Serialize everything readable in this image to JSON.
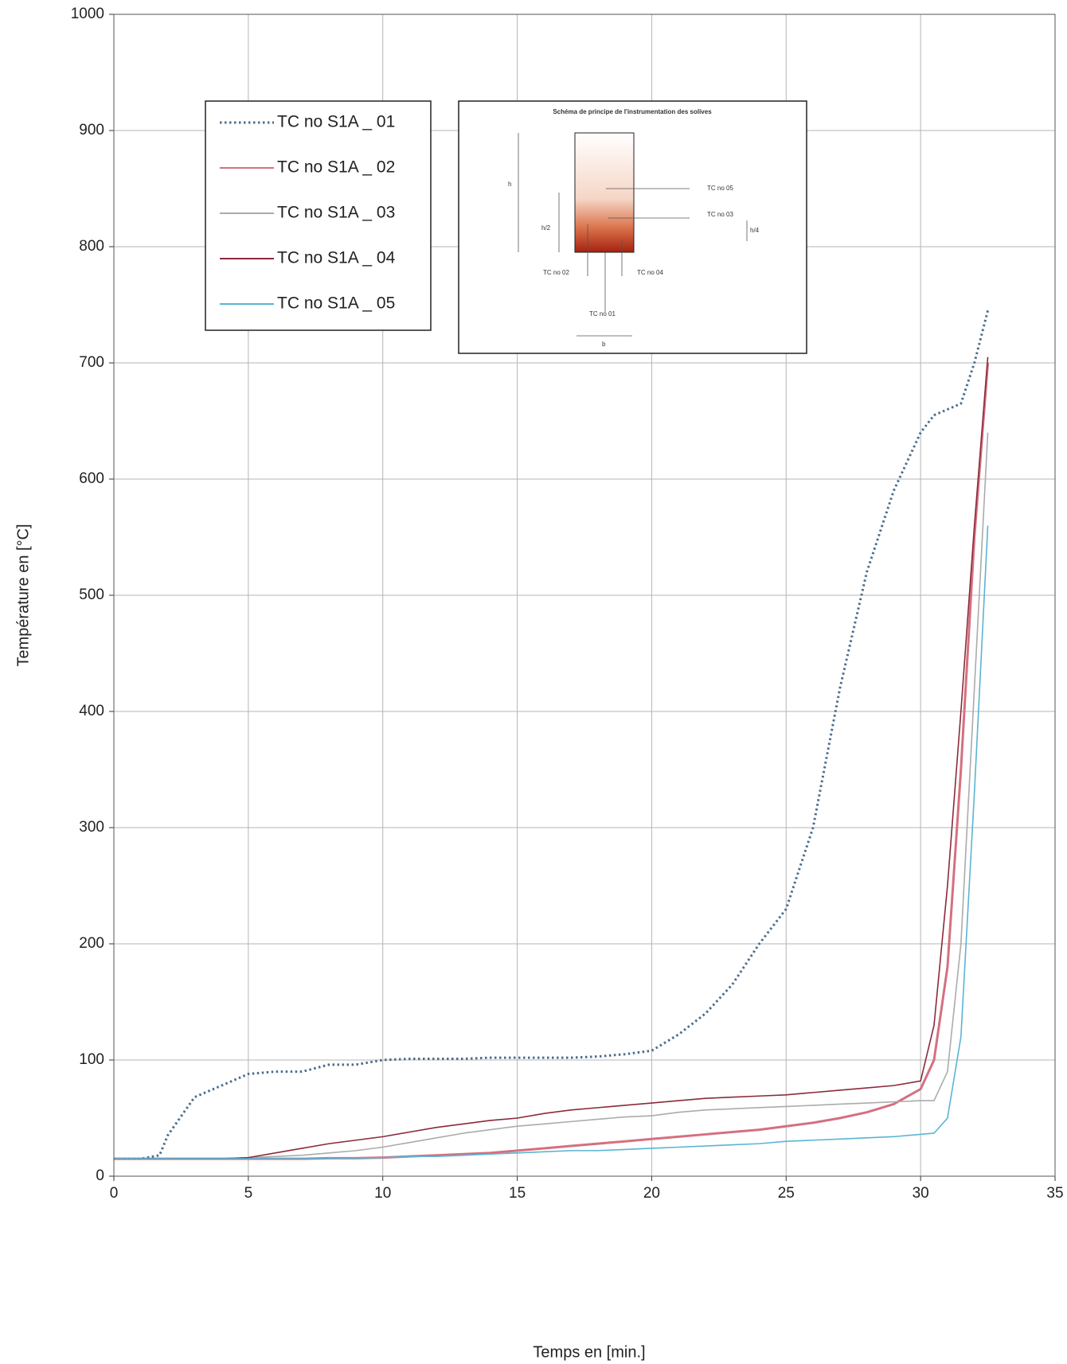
{
  "chart_data": {
    "type": "line",
    "xlabel": "Temps en [min.]",
    "ylabel": "Température  en [°C]",
    "x": [
      0,
      1,
      1.7,
      2,
      3,
      4,
      5,
      6,
      7,
      8,
      9,
      10,
      11,
      12,
      13,
      14,
      15,
      16,
      17,
      18,
      19,
      20,
      21,
      22,
      23,
      24,
      25,
      26,
      27,
      28,
      29,
      30,
      30.5,
      31,
      31.5,
      32,
      32.5
    ],
    "series": [
      {
        "name": "TC no S1A _ 01",
        "color": "#4a6d8c",
        "line_style": "dotted",
        "values": [
          15,
          15,
          18,
          35,
          68,
          78,
          88,
          90,
          90,
          96,
          96,
          100,
          101,
          101,
          101,
          102,
          102,
          102,
          102,
          103,
          105,
          108,
          122,
          140,
          165,
          200,
          230,
          300,
          420,
          520,
          590,
          640,
          655,
          660,
          665,
          700,
          745
        ]
      },
      {
        "name": "TC no S1A _ 02",
        "color": "#d4707f",
        "line_style": "solid",
        "values": [
          15,
          15,
          15,
          15,
          15,
          15,
          15,
          15,
          15,
          15.5,
          15.5,
          16,
          17,
          18,
          19,
          20,
          22,
          24,
          26,
          28,
          30,
          32,
          34,
          36,
          38,
          40,
          43,
          46,
          50,
          55,
          62,
          75,
          100,
          180,
          350,
          550,
          700
        ]
      },
      {
        "name": "TC no S1A _ 03",
        "color": "#ababab",
        "line_style": "solid",
        "values": [
          15,
          15,
          15,
          15,
          15,
          15,
          16,
          17,
          18,
          20,
          22,
          25,
          29,
          33,
          37,
          40,
          43,
          45,
          47,
          49,
          51,
          52,
          55,
          57,
          58,
          59,
          60,
          61,
          62,
          63,
          64,
          65,
          65,
          90,
          200,
          420,
          640
        ]
      },
      {
        "name": "TC no S1A _ 04",
        "color": "#8b2a3a",
        "line_style": "solid",
        "values": [
          15,
          15,
          15,
          15,
          15,
          15,
          16,
          20,
          24,
          28,
          31,
          34,
          38,
          42,
          45,
          48,
          50,
          54,
          57,
          59,
          61,
          63,
          65,
          67,
          68,
          69,
          70,
          72,
          74,
          76,
          78,
          82,
          130,
          250,
          400,
          560,
          705
        ]
      },
      {
        "name": "TC no S1A _ 05",
        "color": "#5ab4d4",
        "line_style": "solid",
        "values": [
          15,
          15,
          15,
          15,
          15,
          15,
          15,
          15,
          15,
          15.5,
          15.5,
          16,
          17,
          17,
          18,
          19,
          20,
          21,
          22,
          22,
          23,
          24,
          25,
          26,
          27,
          28,
          30,
          31,
          32,
          33,
          34,
          36,
          37,
          50,
          120,
          330,
          560
        ]
      }
    ],
    "xlim": [
      0,
      35
    ],
    "ylim": [
      0,
      1000
    ],
    "xticks": [
      0,
      5,
      10,
      15,
      20,
      25,
      30,
      35
    ],
    "yticks": [
      0,
      100,
      200,
      300,
      400,
      500,
      600,
      700,
      800,
      900,
      1000
    ],
    "grid": true,
    "inset": {
      "title": "Schéma de principe de l'instrumentation des solives",
      "labels": [
        "TC no 05",
        "TC no 03",
        "TC no 02",
        "TC no 04",
        "TC no 01",
        "h",
        "h/2",
        "h/4",
        "b"
      ]
    }
  }
}
